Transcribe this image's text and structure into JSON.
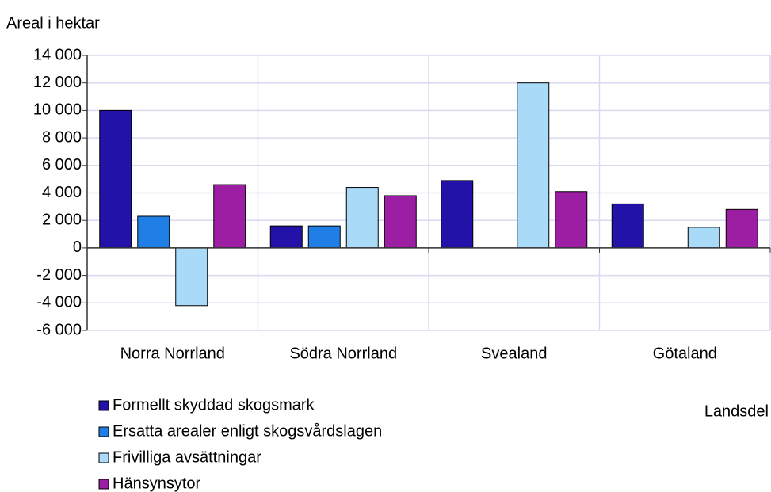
{
  "chart_data": {
    "type": "bar",
    "y_label": "Areal i hektar",
    "x_label": "Landsdel",
    "categories": [
      "Norra Norrland",
      "Södra Norrland",
      "Svealand",
      "Götaland"
    ],
    "series": [
      {
        "name": "Formellt skyddad skogsmark",
        "color": "#2312a8",
        "values": [
          10000,
          1600,
          4900,
          3200
        ]
      },
      {
        "name": "Ersatta arealer enligt skogsvårdslagen",
        "color": "#1f7fe6",
        "values": [
          2300,
          1600,
          null,
          null
        ]
      },
      {
        "name": "Frivilliga avsättningar",
        "color": "#a9dbf9",
        "values": [
          -4200,
          4400,
          12000,
          1500
        ]
      },
      {
        "name": "Hänsynsytor",
        "color": "#9c1ea2",
        "values": [
          4600,
          3800,
          4100,
          2800
        ]
      }
    ],
    "ylim": [
      -6000,
      14000
    ],
    "yticks": [
      {
        "value": -6000,
        "label": "-6 000"
      },
      {
        "value": -4000,
        "label": "-4 000"
      },
      {
        "value": -2000,
        "label": "-2 000"
      },
      0,
      {
        "value": 2000,
        "label": "2 000"
      },
      {
        "value": 4000,
        "label": "4 000"
      },
      {
        "value": 6000,
        "label": "6 000"
      },
      {
        "value": 8000,
        "label": "8 000"
      },
      {
        "value": 10000,
        "label": "10 000"
      },
      {
        "value": 12000,
        "label": "12 000"
      },
      {
        "value": 14000,
        "label": "14 000"
      }
    ],
    "grid": true
  }
}
